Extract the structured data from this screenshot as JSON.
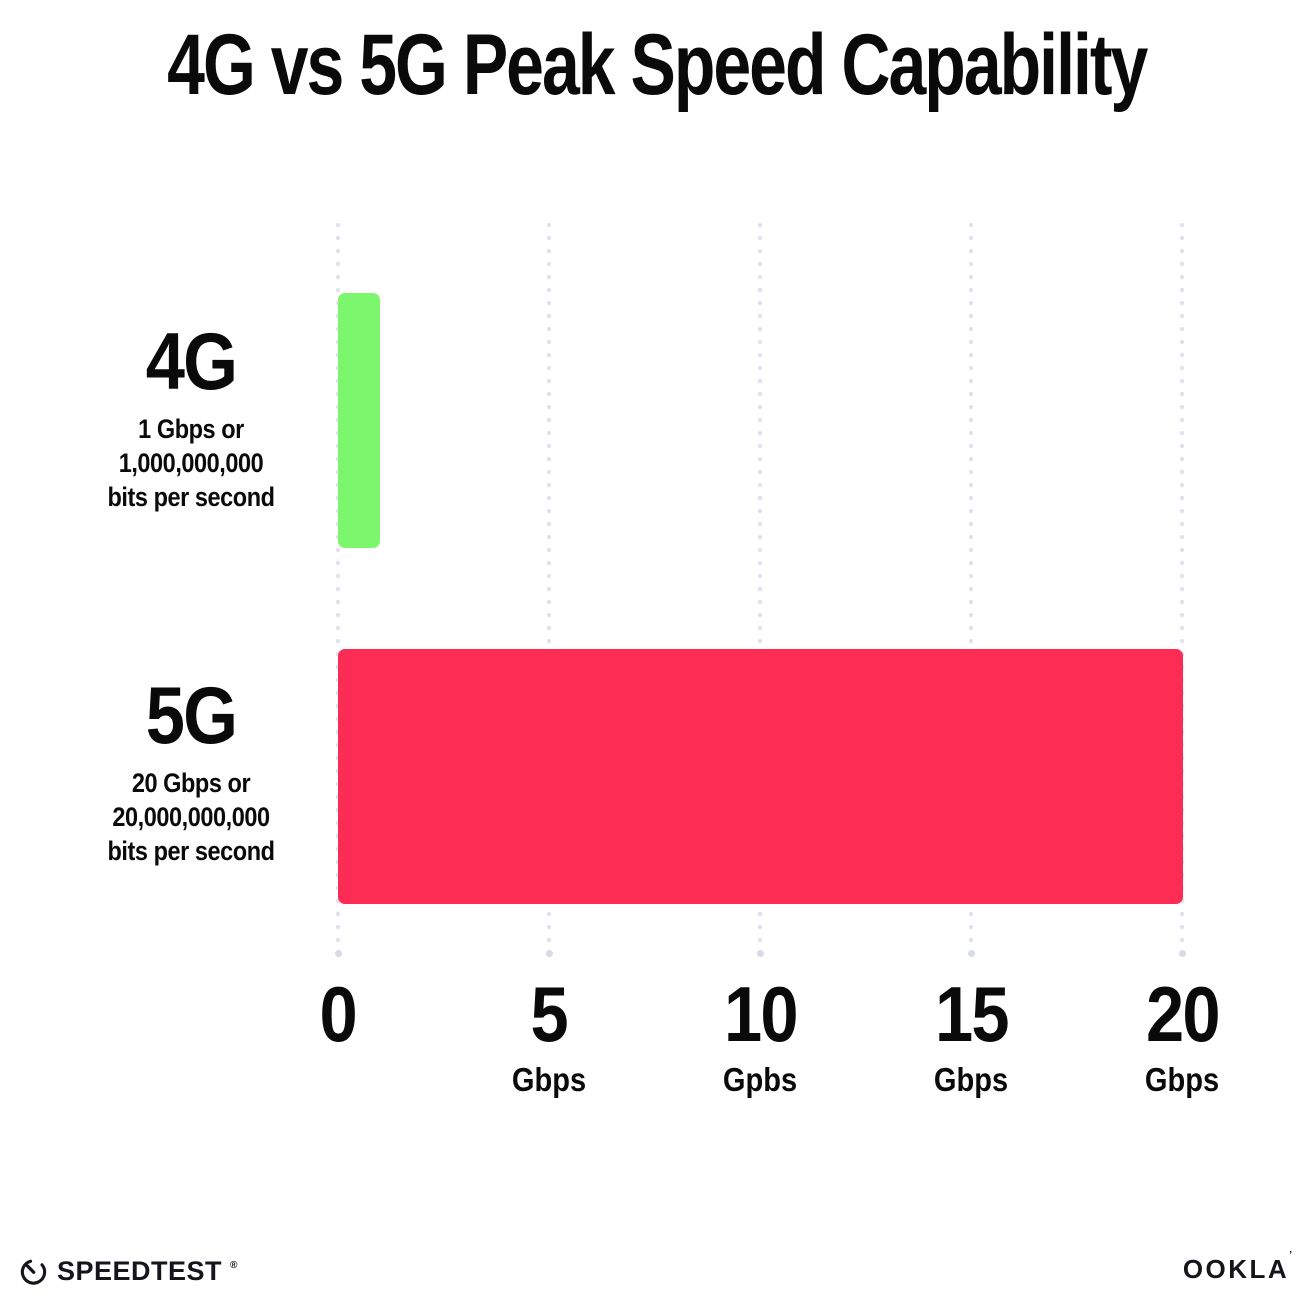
{
  "title": "4G vs 5G Peak Speed Capability",
  "chart_data": {
    "type": "bar",
    "orientation": "horizontal",
    "title": "4G vs 5G Peak Speed Capability",
    "categories": [
      "4G",
      "5G"
    ],
    "values": [
      1,
      20
    ],
    "value_unit": "Gbps",
    "xlim": [
      0,
      20
    ],
    "x_tick_values": [
      0,
      5,
      10,
      15,
      20
    ],
    "x_tick_labels": [
      "0",
      "5 Gbps",
      "10 Gpbs",
      "15 Gbps",
      "20 Gbps"
    ],
    "grid": "vertical-dotted",
    "legend": "none",
    "series_colors": [
      "#7CF66C",
      "#FC2C55"
    ],
    "category_annotations": [
      [
        "1 Gbps or",
        "1,000,000,000",
        "bits per second"
      ],
      [
        "20 Gbps or",
        "20,000,000,000",
        "bits per second"
      ]
    ]
  },
  "rows": [
    {
      "label": "4G",
      "value": 1,
      "color": "#7CF66C",
      "desc": [
        "1 Gbps or",
        "1,000,000,000",
        "bits per second"
      ]
    },
    {
      "label": "5G",
      "value": 20,
      "color": "#FC2C55",
      "desc": [
        "20 Gbps or",
        "20,000,000,000",
        "bits per second"
      ]
    }
  ],
  "x_ticks": [
    {
      "number": "0",
      "unit": ""
    },
    {
      "number": "5",
      "unit": "Gbps"
    },
    {
      "number": "10",
      "unit": "Gpbs"
    },
    {
      "number": "15",
      "unit": "Gbps"
    },
    {
      "number": "20",
      "unit": "Gbps"
    }
  ],
  "footer": {
    "speedtest": "SPEEDTEST",
    "speedtest_mark": "®",
    "ookla": "OOKLA",
    "ookla_mark": "’"
  },
  "colors": {
    "bar_4g": "#7CF66C",
    "bar_5g": "#FC2C55",
    "grid_dot": "#DFE2EC",
    "text": "#0A0A0B",
    "background": "#FFFFFF"
  }
}
